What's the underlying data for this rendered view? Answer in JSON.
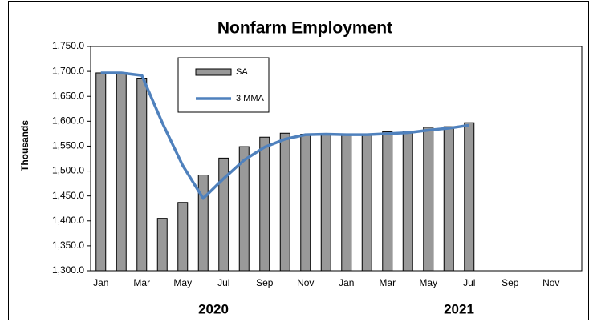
{
  "chart_data": {
    "type": "bar_line",
    "title": "Nonfarm Employment",
    "y_label": "Thousands",
    "categories": [
      "Jan",
      null,
      "Mar",
      null,
      "May",
      null,
      "Jul",
      null,
      "Sep",
      null,
      "Nov",
      null,
      "Jan",
      null,
      "Mar",
      null,
      "May",
      null,
      "Jul",
      null,
      "Sep",
      null,
      "Nov",
      null
    ],
    "year_labels": [
      "2020",
      "2021"
    ],
    "series": [
      {
        "name": "SA",
        "type": "bar",
        "color": "#999999",
        "values": [
          1697,
          1696,
          1685,
          1405,
          1437,
          1492,
          1526,
          1549,
          1568,
          1576,
          1574,
          1573,
          1572,
          1573,
          1579,
          1580,
          1588,
          1589,
          1597,
          null,
          null,
          null,
          null,
          null
        ]
      },
      {
        "name": "3 MMA",
        "type": "line",
        "color": "#4f81bd",
        "values": [
          1697,
          1697,
          1692,
          1597,
          1511,
          1445,
          1485,
          1522,
          1548,
          1564,
          1573,
          1574,
          1573,
          1573,
          1575,
          1577,
          1582,
          1586,
          1592,
          null,
          null,
          null,
          null,
          null
        ]
      }
    ],
    "ylim": [
      1300,
      1750
    ],
    "yticks": [
      {
        "value": 1300,
        "label": "1,300.0"
      },
      {
        "value": 1350,
        "label": "1,350.0"
      },
      {
        "value": 1400,
        "label": "1,400.0"
      },
      {
        "value": 1450,
        "label": "1,450.0"
      },
      {
        "value": 1500,
        "label": "1,500.0"
      },
      {
        "value": 1550,
        "label": "1,550.0"
      },
      {
        "value": 1600,
        "label": "1,600.0"
      },
      {
        "value": 1650,
        "label": "1,650.0"
      },
      {
        "value": 1700,
        "label": "1,700.0"
      },
      {
        "value": 1750,
        "label": "1,750.0"
      }
    ],
    "grid": false,
    "legend": "upper left"
  }
}
